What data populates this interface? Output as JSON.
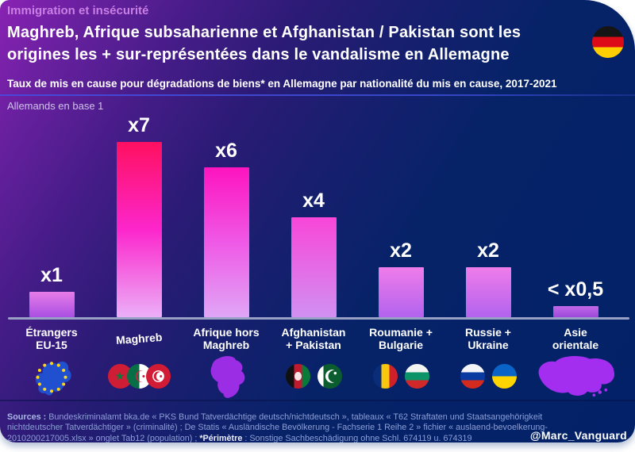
{
  "page": {
    "eyebrow": "Immigration et insécurité",
    "title_line1": "Maghreb, Afrique subsaharienne et Afghanistan / Pakistan sont les",
    "title_line2": "origines les + sur-représentées dans le vandalisme en Allemagne",
    "subtitle": "Taux de mis en cause pour dégradations de biens* en Allemagne par nationalité du mis en cause, 2017-2021",
    "baseline_note": "Allemands en base 1",
    "handle": "@Marc_Vanguard",
    "header_flag_icon": "germany-flag-icon",
    "background_colors": {
      "purple_top_left": "#8a22b4",
      "navy_right": "#032168"
    },
    "accent_colors": {
      "eyebrow_text": "#c97fe3",
      "axis_line": "#98a0c6",
      "sources_text": "#8d9fd6"
    }
  },
  "sources": {
    "label": "Sources :",
    "body": " Bundeskriminalamt bka.de « PKS Bund Tatverdächtige deutsch/nichtdeutsch », tableaux « T62 Straftaten und Staatsangehörigkeit nichtdeutscher Tatverdächtiger » (criminalité) ; De Statis « Ausländische Bevölkerung - Fachserie 1 Reihe 2 » fichier « auslaend-bevoelkerung-2010200217005.xlsx » onglet Tab12 (population) ; ",
    "perimetre_label": "*Périmètre",
    "perimetre_body": " : Sonstige Sachbeschädigung ohne Schl. 674119 u. 674319"
  },
  "chart_data": {
    "type": "bar",
    "title": "Taux de mis en cause pour dégradations de biens* en Allemagne par nationalité du mis en cause, 2017-2021",
    "note": "Allemands en base 1",
    "unit": "multiple du taux des Allemands (base 1)",
    "categories": [
      "Étrangers EU-15",
      "Maghreb",
      "Afrique hors Maghreb",
      "Afghanistan + Pakistan",
      "Roumanie + Bulgarie",
      "Russie + Ukraine",
      "Asie orientale"
    ],
    "values": [
      1,
      7,
      6,
      4,
      2,
      2,
      0.45
    ],
    "value_labels": [
      "x1",
      "x7",
      "x6",
      "x4",
      "x2",
      "x2",
      "< x0,5"
    ],
    "ylim": [
      0,
      8
    ],
    "grid": false,
    "legend": false,
    "bars": [
      {
        "label_line1": "Étrangers",
        "label_line2": "EU-15",
        "value": 1,
        "value_label": "x1",
        "icon": "eu-map-icon",
        "colors": [
          "#e77ce8",
          "#a94fe2"
        ]
      },
      {
        "label_line1": "Maghreb",
        "label_line2": "",
        "value": 7,
        "value_label": "x7",
        "icon": "morocco-algeria-tunisia-flags",
        "colors": [
          "#fe1060",
          "#fc26cc",
          "#ecaff8"
        ]
      },
      {
        "label_line1": "Afrique hors",
        "label_line2": "Maghreb",
        "value": 6,
        "value_label": "x6",
        "icon": "africa-map-icon",
        "colors": [
          "#fd14be",
          "#ef59e6",
          "#e0a6f6"
        ]
      },
      {
        "label_line1": "Afghanistan",
        "label_line2": "+ Pakistan",
        "value": 4,
        "value_label": "x4",
        "icon": "afghanistan-pakistan-flags",
        "colors": [
          "#f846d8",
          "#d190f2"
        ]
      },
      {
        "label_line1": "Roumanie +",
        "label_line2": "Bulgarie",
        "value": 2,
        "value_label": "x2",
        "icon": "romania-bulgaria-flags",
        "colors": [
          "#ef7cea",
          "#b263ee"
        ]
      },
      {
        "label_line1": "Russie +",
        "label_line2": "Ukraine",
        "value": 2,
        "value_label": "x2",
        "icon": "russia-ukraine-flags",
        "colors": [
          "#ef7cea",
          "#b263ee"
        ]
      },
      {
        "label_line1": "Asie",
        "label_line2": "orientale",
        "value": 0.45,
        "value_label": "< x0,5",
        "icon": "asia-map-icon",
        "colors": [
          "#c267e9",
          "#9c49da"
        ]
      }
    ]
  }
}
